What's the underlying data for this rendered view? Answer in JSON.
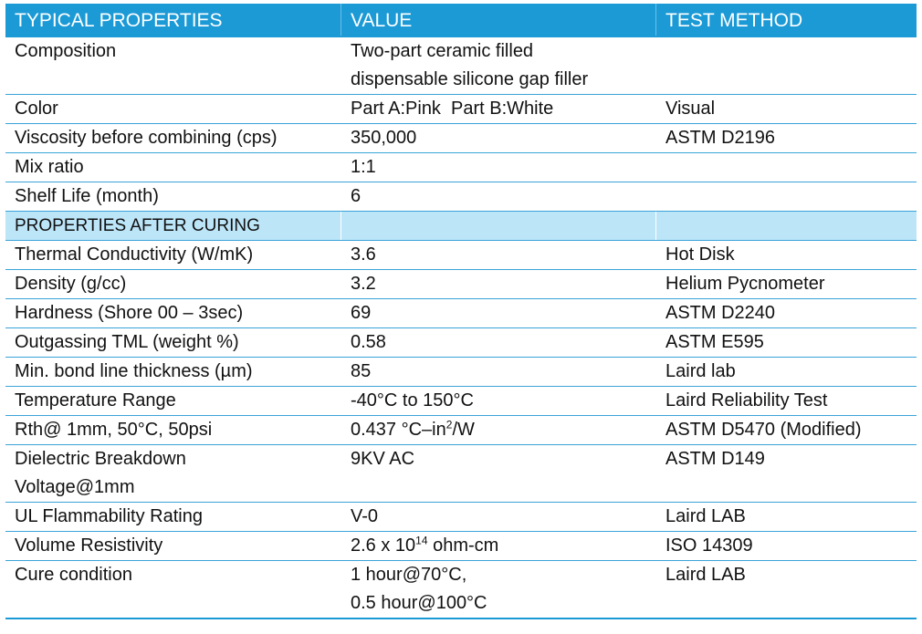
{
  "header": {
    "col1": "TYPICAL PROPERTIES",
    "col2": "VALUE",
    "col3": "TEST METHOD"
  },
  "rows_before": [
    {
      "property": "Composition",
      "value_line1": "Two-part ceramic filled",
      "value_line2": "dispensable silicone gap filler",
      "method": ""
    },
    {
      "property": "Color",
      "value": "Part A:Pink  Part B:White",
      "method": "Visual"
    },
    {
      "property": "Viscosity before combining (cps)",
      "value": "350,000",
      "method": "ASTM D2196"
    },
    {
      "property": "Mix ratio",
      "value": "1:1",
      "method": ""
    },
    {
      "property": "Shelf Life (month)",
      "value": "6",
      "method": ""
    }
  ],
  "section_label": "PROPERTIES AFTER CURING",
  "rows_after": [
    {
      "property": "Thermal Conductivity (W/mK)",
      "value": "3.6",
      "method": "Hot Disk"
    },
    {
      "property": "Density (g/cc)",
      "value": "3.2",
      "method": "Helium Pycnometer"
    },
    {
      "property": "Hardness (Shore 00 – 3sec)",
      "value": "69",
      "method": "ASTM D2240"
    },
    {
      "property": "Outgassing TML (weight %)",
      "value": "0.58",
      "method": "ASTM E595"
    },
    {
      "property": "Min. bond line thickness (µm)",
      "value": "85",
      "method": "Laird lab"
    },
    {
      "property": "Temperature Range",
      "value": "-40°C to 150°C",
      "method": "Laird Reliability Test"
    },
    {
      "property": "Rth@ 1mm, 50°C, 50psi",
      "value_pre": "0.437 °C–in",
      "value_sup": "2",
      "value_post": "/W",
      "method": "ASTM D5470 (Modified)"
    },
    {
      "property_line1": "Dielectric Breakdown",
      "property_line2": "Voltage@1mm",
      "value": "9KV AC",
      "method": "ASTM D149"
    },
    {
      "property": "UL Flammability Rating",
      "value": "V-0",
      "method": "Laird LAB"
    },
    {
      "property": "Volume Resistivity",
      "value_pre": "2.6 x 10",
      "value_sup": "14",
      "value_post": " ohm-cm",
      "method": "ISO 14309"
    },
    {
      "property": "Cure condition",
      "value_line1": "1 hour@70°C,",
      "value_line2": "0.5 hour@100°C",
      "method": "Laird LAB"
    }
  ]
}
